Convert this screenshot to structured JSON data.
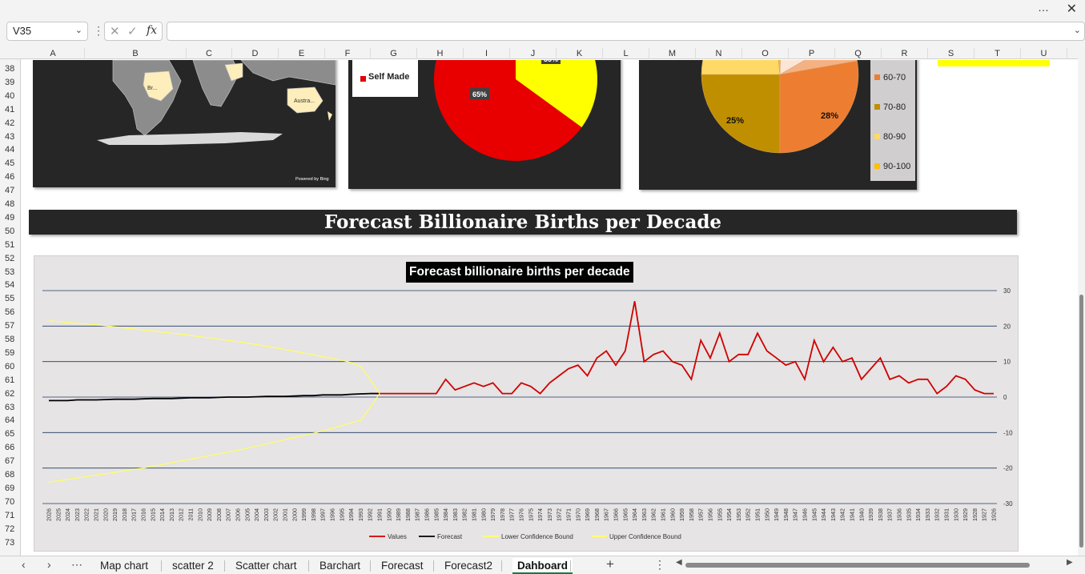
{
  "window": {
    "more_icon": "…",
    "close_icon": "✕"
  },
  "formula_bar": {
    "name_box": "V35",
    "cancel_icon": "✕",
    "enter_icon": "✓",
    "fx_label": "fx",
    "formula_value": ""
  },
  "columns": [
    "A",
    "B",
    "C",
    "D",
    "E",
    "F",
    "G",
    "H",
    "I",
    "J",
    "K",
    "L",
    "M",
    "N",
    "O",
    "P",
    "Q",
    "R",
    "S",
    "T",
    "U"
  ],
  "rows": [
    "38",
    "39",
    "40",
    "41",
    "42",
    "43",
    "44",
    "45",
    "46",
    "47",
    "48",
    "49",
    "50",
    "51",
    "52",
    "53",
    "54",
    "55",
    "56",
    "57",
    "58",
    "59",
    "60",
    "61",
    "62",
    "63",
    "64",
    "65",
    "66",
    "67",
    "68",
    "69",
    "70",
    "71",
    "72",
    "73"
  ],
  "map_card": {
    "labels": [
      "Br...",
      "Austra..."
    ],
    "powered_by": "Powered by Bing"
  },
  "pie1": {
    "legend_label": "Self Made",
    "legend_color": "#e00000",
    "slices": [
      {
        "label": "65%",
        "value": 65,
        "color": "#e80000"
      },
      {
        "label": "35%",
        "value": 35,
        "color": "#ffff00"
      }
    ]
  },
  "pie2": {
    "labels": [
      "25%",
      "28%"
    ],
    "legend": [
      {
        "label": "60-70",
        "color": "#ed7d31"
      },
      {
        "label": "70-80",
        "color": "#bf8f00"
      },
      {
        "label": "80-90",
        "color": "#ffd966"
      },
      {
        "label": "90-100",
        "color": "#ffc000"
      }
    ]
  },
  "banner": {
    "title": "Forecast  Billionaire Births per Decade"
  },
  "chart_data": {
    "type": "line",
    "title": "Forecast billionaire births per decade",
    "ylim": [
      -30,
      30
    ],
    "yticks": [
      30,
      20,
      10,
      0,
      -10,
      -20,
      -30
    ],
    "grid": true,
    "legend_position": "bottom",
    "x": [
      2026,
      2025,
      2024,
      2023,
      2022,
      2021,
      2020,
      2019,
      2018,
      2017,
      2016,
      2015,
      2014,
      2013,
      2012,
      2011,
      2010,
      2009,
      2008,
      2007,
      2006,
      2005,
      2004,
      2003,
      2002,
      2001,
      2000,
      1999,
      1998,
      1997,
      1996,
      1995,
      1994,
      1993,
      1992,
      1991,
      1990,
      1989,
      1988,
      1987,
      1986,
      1985,
      1984,
      1983,
      1982,
      1981,
      1980,
      1979,
      1978,
      1977,
      1976,
      1975,
      1974,
      1973,
      1972,
      1971,
      1970,
      1969,
      1968,
      1967,
      1966,
      1965,
      1964,
      1963,
      1962,
      1961,
      1960,
      1959,
      1958,
      1957,
      1956,
      1955,
      1954,
      1953,
      1952,
      1951,
      1950,
      1949,
      1948,
      1947,
      1946,
      1945,
      1944,
      1943,
      1942,
      1941,
      1940,
      1939,
      1938,
      1937,
      1936,
      1935,
      1934,
      1933,
      1932,
      1931,
      1930,
      1929,
      1928,
      1927,
      1926
    ],
    "series": [
      {
        "name": "Values",
        "color": "#d00000",
        "values": [
          null,
          null,
          null,
          null,
          null,
          null,
          null,
          null,
          null,
          null,
          null,
          null,
          null,
          null,
          null,
          null,
          null,
          null,
          null,
          null,
          null,
          null,
          null,
          null,
          null,
          null,
          null,
          null,
          null,
          null,
          null,
          null,
          null,
          null,
          1,
          1,
          1,
          1,
          1,
          1,
          1,
          1,
          5,
          2,
          3,
          4,
          3,
          4,
          1,
          1,
          4,
          3,
          1,
          4,
          6,
          8,
          9,
          6,
          11,
          13,
          9,
          13,
          27,
          10,
          12,
          13,
          10,
          9,
          5,
          16,
          11,
          18,
          10,
          12,
          12,
          18,
          13,
          11,
          9,
          10,
          5,
          16,
          10,
          14,
          10,
          11,
          5,
          8,
          11,
          5,
          6,
          4,
          5,
          5,
          1,
          3,
          6,
          5,
          2,
          1,
          1
        ]
      },
      {
        "name": "Forecast",
        "color": "#000000",
        "values": [
          -1,
          -1,
          -1,
          -0.8,
          -0.8,
          -0.8,
          -0.7,
          -0.6,
          -0.6,
          -0.6,
          -0.5,
          -0.4,
          -0.4,
          -0.4,
          -0.3,
          -0.2,
          -0.2,
          -0.2,
          -0.1,
          0,
          0,
          0,
          0.1,
          0.2,
          0.2,
          0.2,
          0.3,
          0.4,
          0.4,
          0.6,
          0.6,
          0.6,
          0.8,
          0.9,
          1,
          1,
          null,
          null,
          null,
          null,
          null,
          null,
          null,
          null,
          null,
          null,
          null,
          null,
          null,
          null,
          null,
          null,
          null,
          null,
          null,
          null,
          null,
          null,
          null,
          null,
          null,
          null,
          null,
          null,
          null,
          null,
          null,
          null,
          null,
          null,
          null,
          null,
          null,
          null,
          null,
          null,
          null,
          null,
          null,
          null,
          null,
          null,
          null,
          null,
          null,
          null,
          null,
          null,
          null,
          null,
          null,
          null,
          null,
          null,
          null,
          null,
          null,
          null,
          null,
          null,
          null
        ]
      },
      {
        "name": "Lower Confidence Bound",
        "color": "#ffff66",
        "values": [
          -24,
          -23.6,
          -23.2,
          -22.8,
          -22.4,
          -22,
          -21.6,
          -21.2,
          -20.8,
          -20.4,
          -20,
          -19.5,
          -19,
          -18.5,
          -18,
          -17.5,
          -17,
          -16.5,
          -16,
          -15.5,
          -15,
          -14.4,
          -13.8,
          -13.2,
          -12.6,
          -12,
          -11.4,
          -10.8,
          -10.2,
          -9.5,
          -8.8,
          -8,
          -7.2,
          -6.5,
          -3,
          1,
          null,
          null,
          null,
          null,
          null,
          null,
          null,
          null,
          null,
          null,
          null,
          null,
          null,
          null,
          null,
          null,
          null,
          null,
          null,
          null,
          null,
          null,
          null,
          null,
          null,
          null,
          null,
          null,
          null,
          null,
          null,
          null,
          null,
          null,
          null,
          null,
          null,
          null,
          null,
          null,
          null,
          null,
          null,
          null,
          null,
          null,
          null,
          null,
          null,
          null,
          null,
          null,
          null,
          null,
          null,
          null,
          null,
          null,
          null,
          null,
          null,
          null,
          null,
          null,
          null
        ]
      },
      {
        "name": "Upper Confidence Bound",
        "color": "#ffff66",
        "values": [
          21.5,
          21.3,
          21,
          20.8,
          20.6,
          20.4,
          20.1,
          19.8,
          19.5,
          19.2,
          18.9,
          18.6,
          18.3,
          18,
          17.7,
          17.4,
          17,
          16.7,
          16.3,
          16,
          15.6,
          15.2,
          14.8,
          14.3,
          13.9,
          13.4,
          12.9,
          12.4,
          11.9,
          11.4,
          10.9,
          10.4,
          9.7,
          8.6,
          5,
          1,
          null,
          null,
          null,
          null,
          null,
          null,
          null,
          null,
          null,
          null,
          null,
          null,
          null,
          null,
          null,
          null,
          null,
          null,
          null,
          null,
          null,
          null,
          null,
          null,
          null,
          null,
          null,
          null,
          null,
          null,
          null,
          null,
          null,
          null,
          null,
          null,
          null,
          null,
          null,
          null,
          null,
          null,
          null,
          null,
          null,
          null,
          null,
          null,
          null,
          null,
          null,
          null,
          null,
          null,
          null,
          null,
          null,
          null,
          null,
          null,
          null,
          null,
          null,
          null,
          null
        ]
      }
    ]
  },
  "tabs": {
    "sheets": [
      "Map chart",
      "scatter 2",
      "Scatter chart",
      "Barchart",
      "Forecast",
      "Forecast2",
      "Dahboard"
    ],
    "active": "Dahboard",
    "add_icon": "+",
    "prev_icon": "‹",
    "next_icon": "›",
    "more_icon": "⋯",
    "options_icon": "⋮"
  }
}
